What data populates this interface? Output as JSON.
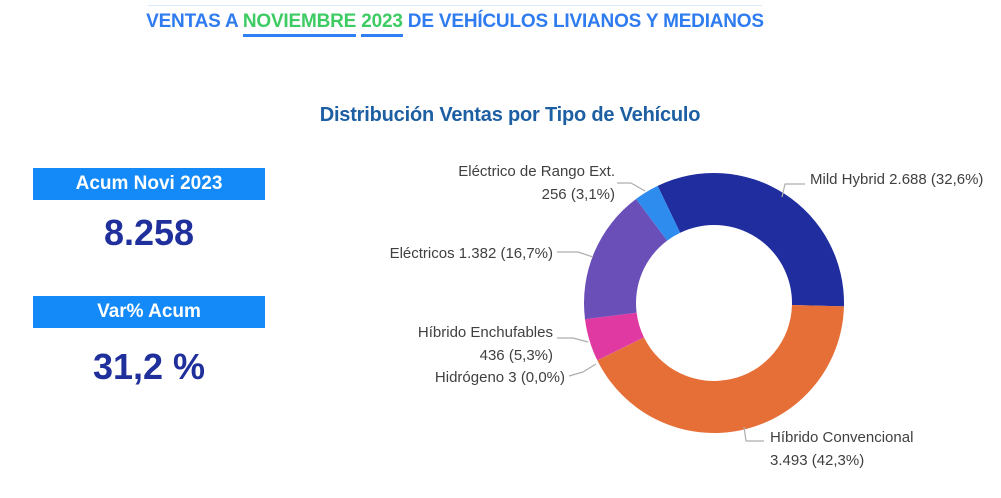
{
  "header": {
    "prefix": "VENTAS A",
    "month": "NOVIEMBRE",
    "year": "2023",
    "suffix": "DE VEHÍCULOS LIVIANOS Y MEDIANOS",
    "text_color": "#2F7BF0",
    "highlight_color": "#3DCB63",
    "underline_color": "#2F7FF5"
  },
  "kpi_cards": [
    {
      "label": "Acum Novi 2023",
      "value": "8.258"
    },
    {
      "label": "Var% Acum",
      "value": "31,2 %"
    }
  ],
  "kpi_style": {
    "bar_color": "#1489F8",
    "value_color": "#1F2F9B"
  },
  "chart_data": {
    "type": "donut",
    "title": "Distribución Ventas por Tipo de Vehículo",
    "title_color": "#1D5FA3",
    "start_angle_deg": -25.7,
    "total": 8258,
    "slices": [
      {
        "name": "Mild Hybrid",
        "value": 2688,
        "value_display": "2.688",
        "pct": "32,6%",
        "color": "#1F2D9E"
      },
      {
        "name": "Híbrido Convencional",
        "value": 3493,
        "value_display": "3.493",
        "pct": "42,3%",
        "color": "#E66F38"
      },
      {
        "name": "Hidrógeno",
        "value": 3,
        "value_display": "3",
        "pct": "0,0%",
        "color": "#C0504D"
      },
      {
        "name": "Híbrido Enchufables",
        "value": 436,
        "value_display": "436",
        "pct": "5,3%",
        "color": "#E039A2"
      },
      {
        "name": "Eléctricos",
        "value": 1382,
        "value_display": "1.382",
        "pct": "16,7%",
        "color": "#6A4FB9"
      },
      {
        "name": "Eléctrico de Rango Ext.",
        "value": 256,
        "value_display": "256",
        "pct": "3,1%",
        "color": "#2E8CEF"
      }
    ],
    "label_color": "#404040",
    "leader_line_color": "#ADADAD"
  }
}
